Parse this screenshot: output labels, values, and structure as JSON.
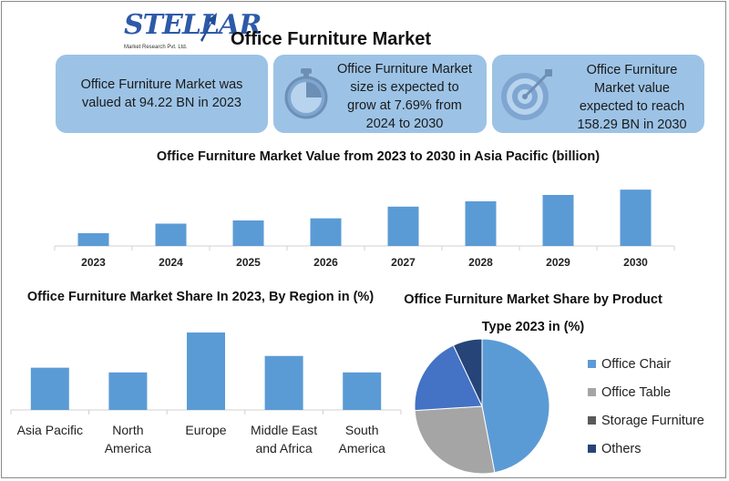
{
  "brand": {
    "name": "STELLAR",
    "tagline": "Market Research Pvt. Ltd."
  },
  "title": "Office Furniture Market",
  "cards": [
    {
      "text": "Office Furniture Market was valued at 94.22 BN in 2023",
      "icon": "none"
    },
    {
      "text": "Office Furniture Market size is expected to grow at 7.69% from 2024 to 2030",
      "icon": "stopwatch-icon"
    },
    {
      "text": "Office Furniture Market value expected to reach 158.29 BN in 2030",
      "icon": "target-icon"
    }
  ],
  "colors": {
    "card": "#9cc3e6",
    "bar": "#5b9bd5",
    "axis": "#d0d0d0"
  },
  "chart_data": [
    {
      "type": "bar",
      "title": "Office Furniture Market Value from 2023 to 2030 in Asia Pacific (billion)",
      "categories": [
        "2023",
        "2024",
        "2025",
        "2026",
        "2027",
        "2028",
        "2029",
        "2030"
      ],
      "values": [
        12,
        21,
        24,
        26,
        37,
        42,
        48,
        53
      ],
      "ylim": [
        0,
        60
      ],
      "xlabel": "",
      "ylabel": "",
      "grid": false
    },
    {
      "type": "bar",
      "title": "Office Furniture Market Share In 2023, By Region in (%)",
      "categories": [
        "Asia Pacific",
        "North America",
        "Europe",
        "Middle East and Africa",
        "South America"
      ],
      "values": [
        18,
        16,
        33,
        23,
        16
      ],
      "ylim": [
        0,
        33
      ],
      "xlabel": "",
      "ylabel": "",
      "grid": false
    },
    {
      "type": "pie",
      "title": "Office Furniture Market Share by Product Type 2023 in (%)",
      "categories": [
        "Office Chair",
        "Office Table",
        "Storage Furniture",
        "Others"
      ],
      "values": [
        47,
        27,
        19,
        7
      ],
      "colors": [
        "#5b9bd5",
        "#a5a5a5",
        "#4472c4",
        "#264478"
      ],
      "legend": "right"
    }
  ]
}
